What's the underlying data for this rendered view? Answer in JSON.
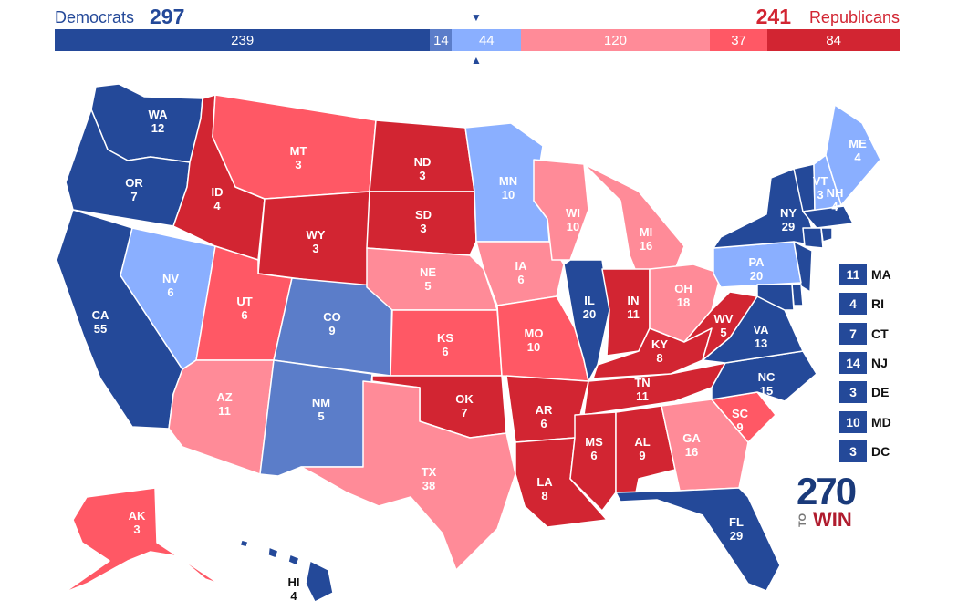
{
  "header": {
    "dem_label": "Democrats",
    "dem_total": "297",
    "rep_total": "241",
    "rep_label": "Republicans"
  },
  "tally": [
    {
      "label": "239",
      "value": 239,
      "color": "#244999"
    },
    {
      "label": "14",
      "value": 14,
      "color": "#5b7dc9"
    },
    {
      "label": "44",
      "value": 44,
      "color": "#8aafff"
    },
    {
      "label": "120",
      "value": 120,
      "color": "#ff8b98"
    },
    {
      "label": "37",
      "value": 37,
      "color": "#ff5865"
    },
    {
      "label": "84",
      "value": 84,
      "color": "#d22532"
    }
  ],
  "markers": {
    "top": "▼",
    "bottom": "▲"
  },
  "colors": {
    "safe_d": "#244999",
    "likely_d": "#5b7dc9",
    "lean_d": "#8aafff",
    "lean_r": "#ff8b98",
    "likely_r": "#ff5865",
    "safe_r": "#d22532"
  },
  "states": {
    "WA": {
      "abbr": "WA",
      "ev": "12",
      "rating": "safe_d"
    },
    "OR": {
      "abbr": "OR",
      "ev": "7",
      "rating": "safe_d"
    },
    "CA": {
      "abbr": "CA",
      "ev": "55",
      "rating": "safe_d"
    },
    "NV": {
      "abbr": "NV",
      "ev": "6",
      "rating": "lean_d"
    },
    "ID": {
      "abbr": "ID",
      "ev": "4",
      "rating": "safe_r"
    },
    "MT": {
      "abbr": "MT",
      "ev": "3",
      "rating": "likely_r"
    },
    "WY": {
      "abbr": "WY",
      "ev": "3",
      "rating": "safe_r"
    },
    "UT": {
      "abbr": "UT",
      "ev": "6",
      "rating": "likely_r"
    },
    "AZ": {
      "abbr": "AZ",
      "ev": "11",
      "rating": "lean_r"
    },
    "CO": {
      "abbr": "CO",
      "ev": "9",
      "rating": "likely_d"
    },
    "NM": {
      "abbr": "NM",
      "ev": "5",
      "rating": "likely_d"
    },
    "ND": {
      "abbr": "ND",
      "ev": "3",
      "rating": "safe_r"
    },
    "SD": {
      "abbr": "SD",
      "ev": "3",
      "rating": "safe_r"
    },
    "NE": {
      "abbr": "NE",
      "ev": "5",
      "rating": "lean_r"
    },
    "KS": {
      "abbr": "KS",
      "ev": "6",
      "rating": "likely_r"
    },
    "OK": {
      "abbr": "OK",
      "ev": "7",
      "rating": "safe_r"
    },
    "TX": {
      "abbr": "TX",
      "ev": "38",
      "rating": "lean_r"
    },
    "MN": {
      "abbr": "MN",
      "ev": "10",
      "rating": "lean_d"
    },
    "IA": {
      "abbr": "IA",
      "ev": "6",
      "rating": "lean_r"
    },
    "MO": {
      "abbr": "MO",
      "ev": "10",
      "rating": "likely_r"
    },
    "AR": {
      "abbr": "AR",
      "ev": "6",
      "rating": "safe_r"
    },
    "LA": {
      "abbr": "LA",
      "ev": "8",
      "rating": "safe_r"
    },
    "WI": {
      "abbr": "WI",
      "ev": "10",
      "rating": "lean_r"
    },
    "IL": {
      "abbr": "IL",
      "ev": "20",
      "rating": "safe_d"
    },
    "MI": {
      "abbr": "MI",
      "ev": "16",
      "rating": "lean_r"
    },
    "IN": {
      "abbr": "IN",
      "ev": "11",
      "rating": "safe_r"
    },
    "OH": {
      "abbr": "OH",
      "ev": "18",
      "rating": "lean_r"
    },
    "KY": {
      "abbr": "KY",
      "ev": "8",
      "rating": "safe_r"
    },
    "TN": {
      "abbr": "TN",
      "ev": "11",
      "rating": "safe_r"
    },
    "MS": {
      "abbr": "MS",
      "ev": "6",
      "rating": "safe_r"
    },
    "AL": {
      "abbr": "AL",
      "ev": "9",
      "rating": "safe_r"
    },
    "GA": {
      "abbr": "GA",
      "ev": "16",
      "rating": "lean_r"
    },
    "FL": {
      "abbr": "FL",
      "ev": "29",
      "rating": "safe_d"
    },
    "SC": {
      "abbr": "SC",
      "ev": "9",
      "rating": "likely_r"
    },
    "NC": {
      "abbr": "NC",
      "ev": "15",
      "rating": "safe_d"
    },
    "VA": {
      "abbr": "VA",
      "ev": "13",
      "rating": "safe_d"
    },
    "WV": {
      "abbr": "WV",
      "ev": "5",
      "rating": "safe_r"
    },
    "PA": {
      "abbr": "PA",
      "ev": "20",
      "rating": "lean_d"
    },
    "NY": {
      "abbr": "NY",
      "ev": "29",
      "rating": "safe_d"
    },
    "VT": {
      "abbr": "VT",
      "ev": "3",
      "rating": "safe_d"
    },
    "NH": {
      "abbr": "NH",
      "ev": "4",
      "rating": "lean_d"
    },
    "ME": {
      "abbr": "ME",
      "ev": "4",
      "rating": "lean_d"
    },
    "AK": {
      "abbr": "AK",
      "ev": "3",
      "rating": "likely_r"
    },
    "HI": {
      "abbr": "HI",
      "ev": "4",
      "rating": "safe_d"
    }
  },
  "small_states": [
    {
      "abbr": "MA",
      "ev": "11",
      "rating": "safe_d"
    },
    {
      "abbr": "RI",
      "ev": "4",
      "rating": "safe_d"
    },
    {
      "abbr": "CT",
      "ev": "7",
      "rating": "safe_d"
    },
    {
      "abbr": "NJ",
      "ev": "14",
      "rating": "safe_d"
    },
    {
      "abbr": "DE",
      "ev": "3",
      "rating": "safe_d"
    },
    {
      "abbr": "MD",
      "ev": "10",
      "rating": "safe_d"
    },
    {
      "abbr": "DC",
      "ev": "3",
      "rating": "safe_d"
    }
  ],
  "logo": {
    "number": "270",
    "to": "TO",
    "win": "WIN"
  }
}
